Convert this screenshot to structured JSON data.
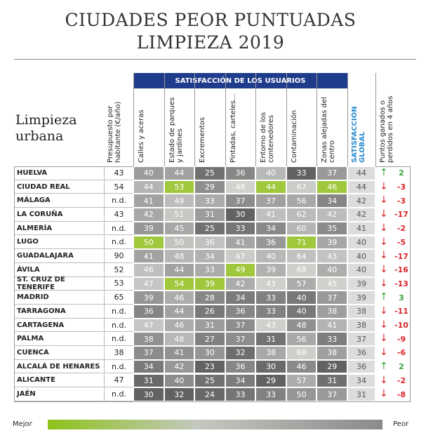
{
  "header": {
    "title_line1": "CIUDADES PEOR PUNTUADAS",
    "title_line2": "LIMPIEZA 2019"
  },
  "side_label": "Limpieza urbana",
  "group_header": "SATISFACCIÓN DE LOS USUARIOS",
  "columns": {
    "budget": "Presupuesto por habitante (€/año)",
    "scores": [
      "Calles y aceras",
      "Estado de parques y jardines",
      "Excrementos",
      "Pintadas, carteles...",
      "Entorno de los contenedores",
      "Contaminación",
      "Zonas alejadas del centro"
    ],
    "global": "SATISFACCIÓN GLOBAL",
    "change": "Puntos ganados o perdidos en 4 años"
  },
  "table": {
    "rows": [
      {
        "name": "HUELVA",
        "budget": 43,
        "scores": [
          40,
          44,
          25,
          36,
          40,
          33,
          37
        ],
        "global": 44,
        "change": 2
      },
      {
        "name": "CIUDAD REAL",
        "budget": 54,
        "scores": [
          44,
          53,
          29,
          48,
          44,
          67,
          46
        ],
        "global": 44,
        "change": -3
      },
      {
        "name": "MÁLAGA",
        "budget": "n.d.",
        "scores": [
          41,
          49,
          33,
          37,
          37,
          56,
          34
        ],
        "global": 42,
        "change": -3
      },
      {
        "name": "LA CORUÑA",
        "budget": 43,
        "scores": [
          42,
          51,
          31,
          30,
          41,
          62,
          42
        ],
        "global": 42,
        "change": -17
      },
      {
        "name": "ALMERÍA",
        "budget": "n.d.",
        "scores": [
          39,
          45,
          25,
          33,
          34,
          60,
          35
        ],
        "global": 41,
        "change": -2
      },
      {
        "name": "LUGO",
        "budget": "n.d.",
        "scores": [
          50,
          50,
          36,
          41,
          36,
          71,
          39
        ],
        "global": 40,
        "change": -5
      },
      {
        "name": "GUADALAJARA",
        "budget": 90,
        "scores": [
          41,
          48,
          34,
          47,
          40,
          64,
          43
        ],
        "global": 40,
        "change": -17
      },
      {
        "name": "ÁVILA",
        "budget": 52,
        "scores": [
          46,
          44,
          33,
          49,
          39,
          68,
          40
        ],
        "global": 40,
        "change": -16
      },
      {
        "name": "ST. CRUZ DE TENERIFE",
        "budget": 53,
        "scores": [
          47,
          54,
          39,
          42,
          43,
          57,
          45
        ],
        "global": 39,
        "change": -13
      },
      {
        "name": "MADRID",
        "budget": 65,
        "scores": [
          39,
          46,
          28,
          34,
          33,
          40,
          37
        ],
        "global": 39,
        "change": 3
      },
      {
        "name": "TARRAGONA",
        "budget": "n.d.",
        "scores": [
          36,
          44,
          26,
          36,
          33,
          40,
          38
        ],
        "global": 38,
        "change": -11
      },
      {
        "name": "CARTAGENA",
        "budget": "n.d.",
        "scores": [
          47,
          46,
          31,
          37,
          43,
          48,
          41
        ],
        "global": 38,
        "change": -10
      },
      {
        "name": "PALMA",
        "budget": "n.d.",
        "scores": [
          38,
          48,
          27,
          37,
          31,
          56,
          33
        ],
        "global": 37,
        "change": -9
      },
      {
        "name": "CUENCA",
        "budget": 38,
        "scores": [
          37,
          41,
          30,
          32,
          38,
          68,
          38
        ],
        "global": 36,
        "change": -6
      },
      {
        "name": "ALCALÁ DE HENARES",
        "budget": "n.d.",
        "scores": [
          34,
          42,
          23,
          36,
          30,
          46,
          29
        ],
        "global": 36,
        "change": 2
      },
      {
        "name": "ALICANTE",
        "budget": 47,
        "scores": [
          31,
          40,
          25,
          34,
          29,
          57,
          31
        ],
        "global": 34,
        "change": -2
      },
      {
        "name": "JAÉN",
        "budget": "n.d.",
        "scores": [
          30,
          32,
          24,
          33,
          33,
          50,
          37
        ],
        "global": 31,
        "change": -8
      }
    ]
  },
  "legend": {
    "left": "Mejor",
    "right": "Peor"
  }
}
